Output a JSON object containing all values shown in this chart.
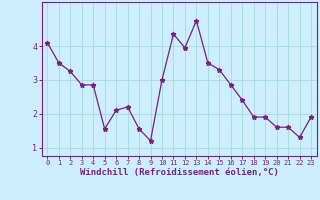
{
  "x": [
    0,
    1,
    2,
    3,
    4,
    5,
    6,
    7,
    8,
    9,
    10,
    11,
    12,
    13,
    14,
    15,
    16,
    17,
    18,
    19,
    20,
    21,
    22,
    23
  ],
  "y": [
    4.1,
    3.5,
    3.25,
    2.85,
    2.85,
    1.55,
    2.1,
    2.2,
    1.55,
    1.2,
    3.0,
    4.35,
    3.95,
    4.75,
    3.5,
    3.3,
    2.85,
    2.4,
    1.9,
    1.9,
    1.6,
    1.6,
    1.3,
    1.9
  ],
  "line_color": "#7B2080",
  "marker": "*",
  "marker_size": 3.5,
  "bg_color": "#cceeff",
  "grid_color": "#aadddd",
  "xlabel": "Windchill (Refroidissement éolien,°C)",
  "xlim": [
    -0.5,
    23.5
  ],
  "ylim": [
    0.75,
    5.3
  ],
  "yticks": [
    1,
    2,
    3,
    4
  ],
  "xticks": [
    0,
    1,
    2,
    3,
    4,
    5,
    6,
    7,
    8,
    9,
    10,
    11,
    12,
    13,
    14,
    15,
    16,
    17,
    18,
    19,
    20,
    21,
    22,
    23
  ],
  "xlabel_fontsize": 6.5,
  "tick_fontsize": 6.0,
  "axis_color": "#7B2080"
}
